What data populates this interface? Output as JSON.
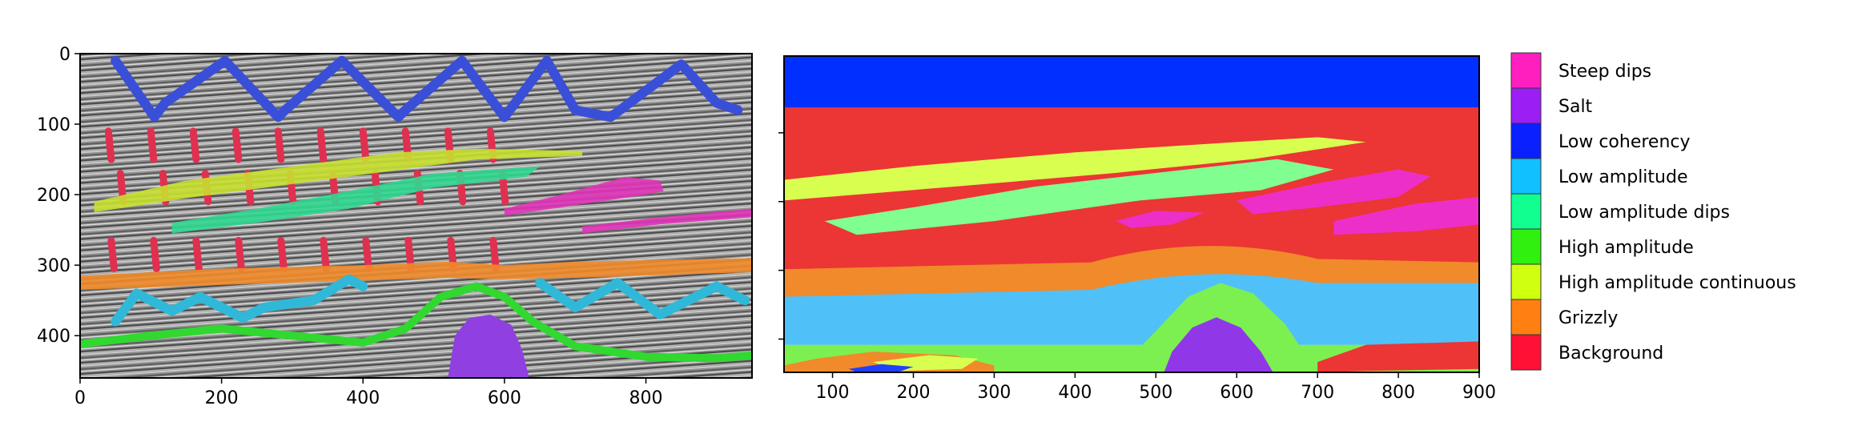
{
  "chart_data": [
    {
      "type": "heatmap",
      "panel": "left",
      "description_source": "seismic section with hand-drawn class annotations",
      "x": {
        "range": [
          0,
          950
        ],
        "ticks": [
          0,
          200,
          400,
          600,
          800
        ]
      },
      "y": {
        "range": [
          0,
          460
        ],
        "inverted": true,
        "ticks": [
          0,
          100,
          200,
          300,
          400
        ]
      },
      "annotations": [
        {
          "class": "Low coherency",
          "color": "#3a4fd8",
          "shape": "zigzag",
          "points": [
            [
              50,
              10
            ],
            [
              105,
              90
            ],
            [
              120,
              70
            ],
            [
              205,
              10
            ],
            [
              280,
              90
            ],
            [
              290,
              80
            ],
            [
              370,
              10
            ],
            [
              450,
              90
            ],
            [
              460,
              80
            ],
            [
              540,
              10
            ],
            [
              600,
              90
            ],
            [
              660,
              10
            ],
            [
              700,
              80
            ],
            [
              750,
              90
            ],
            [
              850,
              15
            ],
            [
              900,
              70
            ],
            [
              930,
              80
            ]
          ]
        },
        {
          "class": "High amplitude continuous",
          "color": "#c8e030",
          "shape": "band",
          "upper": [
            [
              20,
              210
            ],
            [
              150,
              180
            ],
            [
              300,
              160
            ],
            [
              450,
              140
            ],
            [
              560,
              135
            ],
            [
              710,
              138
            ]
          ],
          "lower": [
            [
              20,
              225
            ],
            [
              150,
              205
            ],
            [
              300,
              185
            ],
            [
              450,
              165
            ],
            [
              560,
              150
            ],
            [
              710,
              145
            ]
          ]
        },
        {
          "class": "Low amplitude dips",
          "color": "#30d890",
          "shape": "band",
          "upper": [
            [
              130,
              240
            ],
            [
              250,
              220
            ],
            [
              380,
              195
            ],
            [
              500,
              170
            ],
            [
              650,
              160
            ]
          ],
          "lower": [
            [
              130,
              255
            ],
            [
              250,
              240
            ],
            [
              380,
              220
            ],
            [
              500,
              190
            ],
            [
              630,
              175
            ]
          ]
        },
        {
          "class": "Steep dips",
          "color": "#e033b8",
          "shape": "band",
          "upper": [
            [
              600,
              220
            ],
            [
              680,
              200
            ],
            [
              770,
              175
            ],
            [
              820,
              180
            ]
          ],
          "lower": [
            [
              600,
              230
            ],
            [
              700,
              215
            ],
            [
              800,
              200
            ],
            [
              825,
              195
            ]
          ]
        },
        {
          "class": "Steep dips",
          "color": "#e033b8",
          "shape": "band",
          "upper": [
            [
              710,
              245
            ],
            [
              820,
              232
            ],
            [
              950,
              220
            ]
          ],
          "lower": [
            [
              710,
              255
            ],
            [
              820,
              242
            ],
            [
              950,
              232
            ]
          ]
        },
        {
          "class": "Grizzly",
          "color": "#f08a2a",
          "shape": "band",
          "upper": [
            [
              0,
              315
            ],
            [
              200,
              305
            ],
            [
              400,
              300
            ],
            [
              520,
              295
            ],
            [
              600,
              300
            ],
            [
              700,
              295
            ],
            [
              950,
              290
            ]
          ],
          "lower": [
            [
              0,
              335
            ],
            [
              200,
              328
            ],
            [
              400,
              322
            ],
            [
              520,
              318
            ],
            [
              600,
              320
            ],
            [
              700,
              318
            ],
            [
              950,
              310
            ]
          ]
        },
        {
          "class": "Low amplitude",
          "color": "#30b8d8",
          "shape": "zigzag",
          "points": [
            [
              50,
              380
            ],
            [
              80,
              340
            ],
            [
              130,
              365
            ],
            [
              170,
              345
            ],
            [
              230,
              375
            ],
            [
              260,
              360
            ],
            [
              330,
              350
            ],
            [
              380,
              320
            ],
            [
              400,
              330
            ]
          ]
        },
        {
          "class": "Low amplitude",
          "color": "#30b8d8",
          "shape": "zigzag",
          "points": [
            [
              650,
              325
            ],
            [
              700,
              360
            ],
            [
              760,
              325
            ],
            [
              820,
              370
            ],
            [
              900,
              330
            ],
            [
              940,
              350
            ]
          ]
        },
        {
          "class": "High amplitude",
          "color": "#30d830",
          "shape": "line",
          "points": [
            [
              0,
              412
            ],
            [
              100,
              400
            ],
            [
              200,
              390
            ],
            [
              300,
              400
            ],
            [
              400,
              410
            ],
            [
              460,
              390
            ],
            [
              510,
              345
            ],
            [
              560,
              330
            ],
            [
              600,
              345
            ],
            [
              640,
              380
            ],
            [
              700,
              415
            ],
            [
              800,
              430
            ],
            [
              900,
              432
            ],
            [
              950,
              428
            ]
          ]
        },
        {
          "class": "Salt",
          "color": "#9040e0",
          "shape": "blob",
          "points": [
            [
              520,
              460
            ],
            [
              530,
              400
            ],
            [
              550,
              375
            ],
            [
              580,
              370
            ],
            [
              610,
              385
            ],
            [
              625,
              420
            ],
            [
              635,
              460
            ]
          ]
        }
      ],
      "vertical_marks_color": "#e03050"
    },
    {
      "type": "heatmap",
      "panel": "right",
      "description_source": "predicted facies classification",
      "x": {
        "range": [
          40,
          900
        ],
        "ticks": [
          100,
          200,
          300,
          400,
          500,
          600,
          700,
          800,
          900
        ]
      },
      "y": {
        "range": [
          0,
          460
        ],
        "inverted": true
      },
      "regions": [
        {
          "class": "Low coherency",
          "color": "#0030ff",
          "from_top": 0,
          "to": 75
        },
        {
          "class": "Background",
          "color": "#ec3535",
          "from_top": 75,
          "to": 310
        },
        {
          "class": "Grizzly",
          "color": "#f08a2a",
          "from_top": 310,
          "to": 350
        },
        {
          "class": "Low amplitude",
          "color": "#50c0f8",
          "from_top": 350,
          "to": 420
        },
        {
          "class": "High amplitude",
          "color": "#7cf050",
          "from_top": 420,
          "to": 460
        }
      ],
      "blobs": [
        {
          "class": "High amplitude continuous",
          "color": "#d8ff50",
          "points": [
            [
              40,
              180
            ],
            [
              200,
              160
            ],
            [
              400,
              140
            ],
            [
              600,
              125
            ],
            [
              700,
              118
            ],
            [
              760,
              125
            ],
            [
              620,
              150
            ],
            [
              450,
              170
            ],
            [
              250,
              190
            ],
            [
              40,
              210
            ]
          ]
        },
        {
          "class": "Low amplitude dips",
          "color": "#80ff90",
          "points": [
            [
              90,
              240
            ],
            [
              200,
              220
            ],
            [
              350,
              190
            ],
            [
              500,
              170
            ],
            [
              650,
              150
            ],
            [
              720,
              165
            ],
            [
              630,
              195
            ],
            [
              480,
              210
            ],
            [
              300,
              240
            ],
            [
              130,
              260
            ]
          ]
        },
        {
          "class": "Steep dips",
          "color": "#ec2fc8",
          "points": [
            [
              600,
              210
            ],
            [
              700,
              185
            ],
            [
              800,
              165
            ],
            [
              840,
              175
            ],
            [
              800,
              205
            ],
            [
              700,
              220
            ],
            [
              620,
              230
            ]
          ]
        },
        {
          "class": "Steep dips",
          "color": "#ec2fc8",
          "points": [
            [
              720,
              240
            ],
            [
              820,
              215
            ],
            [
              900,
              205
            ],
            [
              900,
              245
            ],
            [
              820,
              255
            ],
            [
              720,
              260
            ]
          ]
        },
        {
          "class": "Steep dips",
          "color": "#ec2fc8",
          "points": [
            [
              450,
              240
            ],
            [
              500,
              225
            ],
            [
              560,
              228
            ],
            [
              520,
              245
            ],
            [
              470,
              250
            ]
          ]
        },
        {
          "class": "High amplitude",
          "color": "#7cf050",
          "points": [
            [
              450,
              460
            ],
            [
              500,
              400
            ],
            [
              540,
              350
            ],
            [
              580,
              330
            ],
            [
              620,
              345
            ],
            [
              660,
              390
            ],
            [
              700,
              460
            ]
          ]
        },
        {
          "class": "Salt",
          "color": "#9038e8",
          "points": [
            [
              510,
              460
            ],
            [
              520,
              430
            ],
            [
              545,
              395
            ],
            [
              575,
              380
            ],
            [
              605,
              395
            ],
            [
              630,
              430
            ],
            [
              645,
              460
            ]
          ]
        },
        {
          "class": "Grizzly",
          "color": "#f08a2a",
          "points": [
            [
              40,
              450
            ],
            [
              80,
              440
            ],
            [
              150,
              430
            ],
            [
              250,
              435
            ],
            [
              300,
              450
            ],
            [
              300,
              460
            ],
            [
              40,
              460
            ]
          ]
        },
        {
          "class": "High amplitude continuous",
          "color": "#d8ff50",
          "points": [
            [
              150,
              445
            ],
            [
              220,
              435
            ],
            [
              280,
              440
            ],
            [
              260,
              455
            ],
            [
              180,
              458
            ]
          ]
        },
        {
          "class": "Low coherency",
          "color": "#2040ff",
          "points": [
            [
              120,
              455
            ],
            [
              160,
              448
            ],
            [
              200,
              452
            ],
            [
              180,
              460
            ],
            [
              130,
              460
            ]
          ]
        },
        {
          "class": "Background",
          "color": "#ec3535",
          "points": [
            [
              700,
              445
            ],
            [
              760,
              420
            ],
            [
              900,
              415
            ],
            [
              900,
              455
            ],
            [
              760,
              458
            ],
            [
              700,
              460
            ]
          ]
        }
      ]
    }
  ],
  "legend": [
    {
      "label": "Steep dips",
      "color": "#ff1fbf"
    },
    {
      "label": "Salt",
      "color": "#9b1ff5"
    },
    {
      "label": "Low coherency",
      "color": "#0a20ff"
    },
    {
      "label": "Low amplitude",
      "color": "#10c0ff"
    },
    {
      "label": "Low amplitude dips",
      "color": "#10ff90"
    },
    {
      "label": "High amplitude",
      "color": "#30f010"
    },
    {
      "label": "High amplitude continuous",
      "color": "#d0ff10"
    },
    {
      "label": "Grizzly",
      "color": "#ff8010"
    },
    {
      "label": "Background",
      "color": "#ff1035"
    }
  ]
}
